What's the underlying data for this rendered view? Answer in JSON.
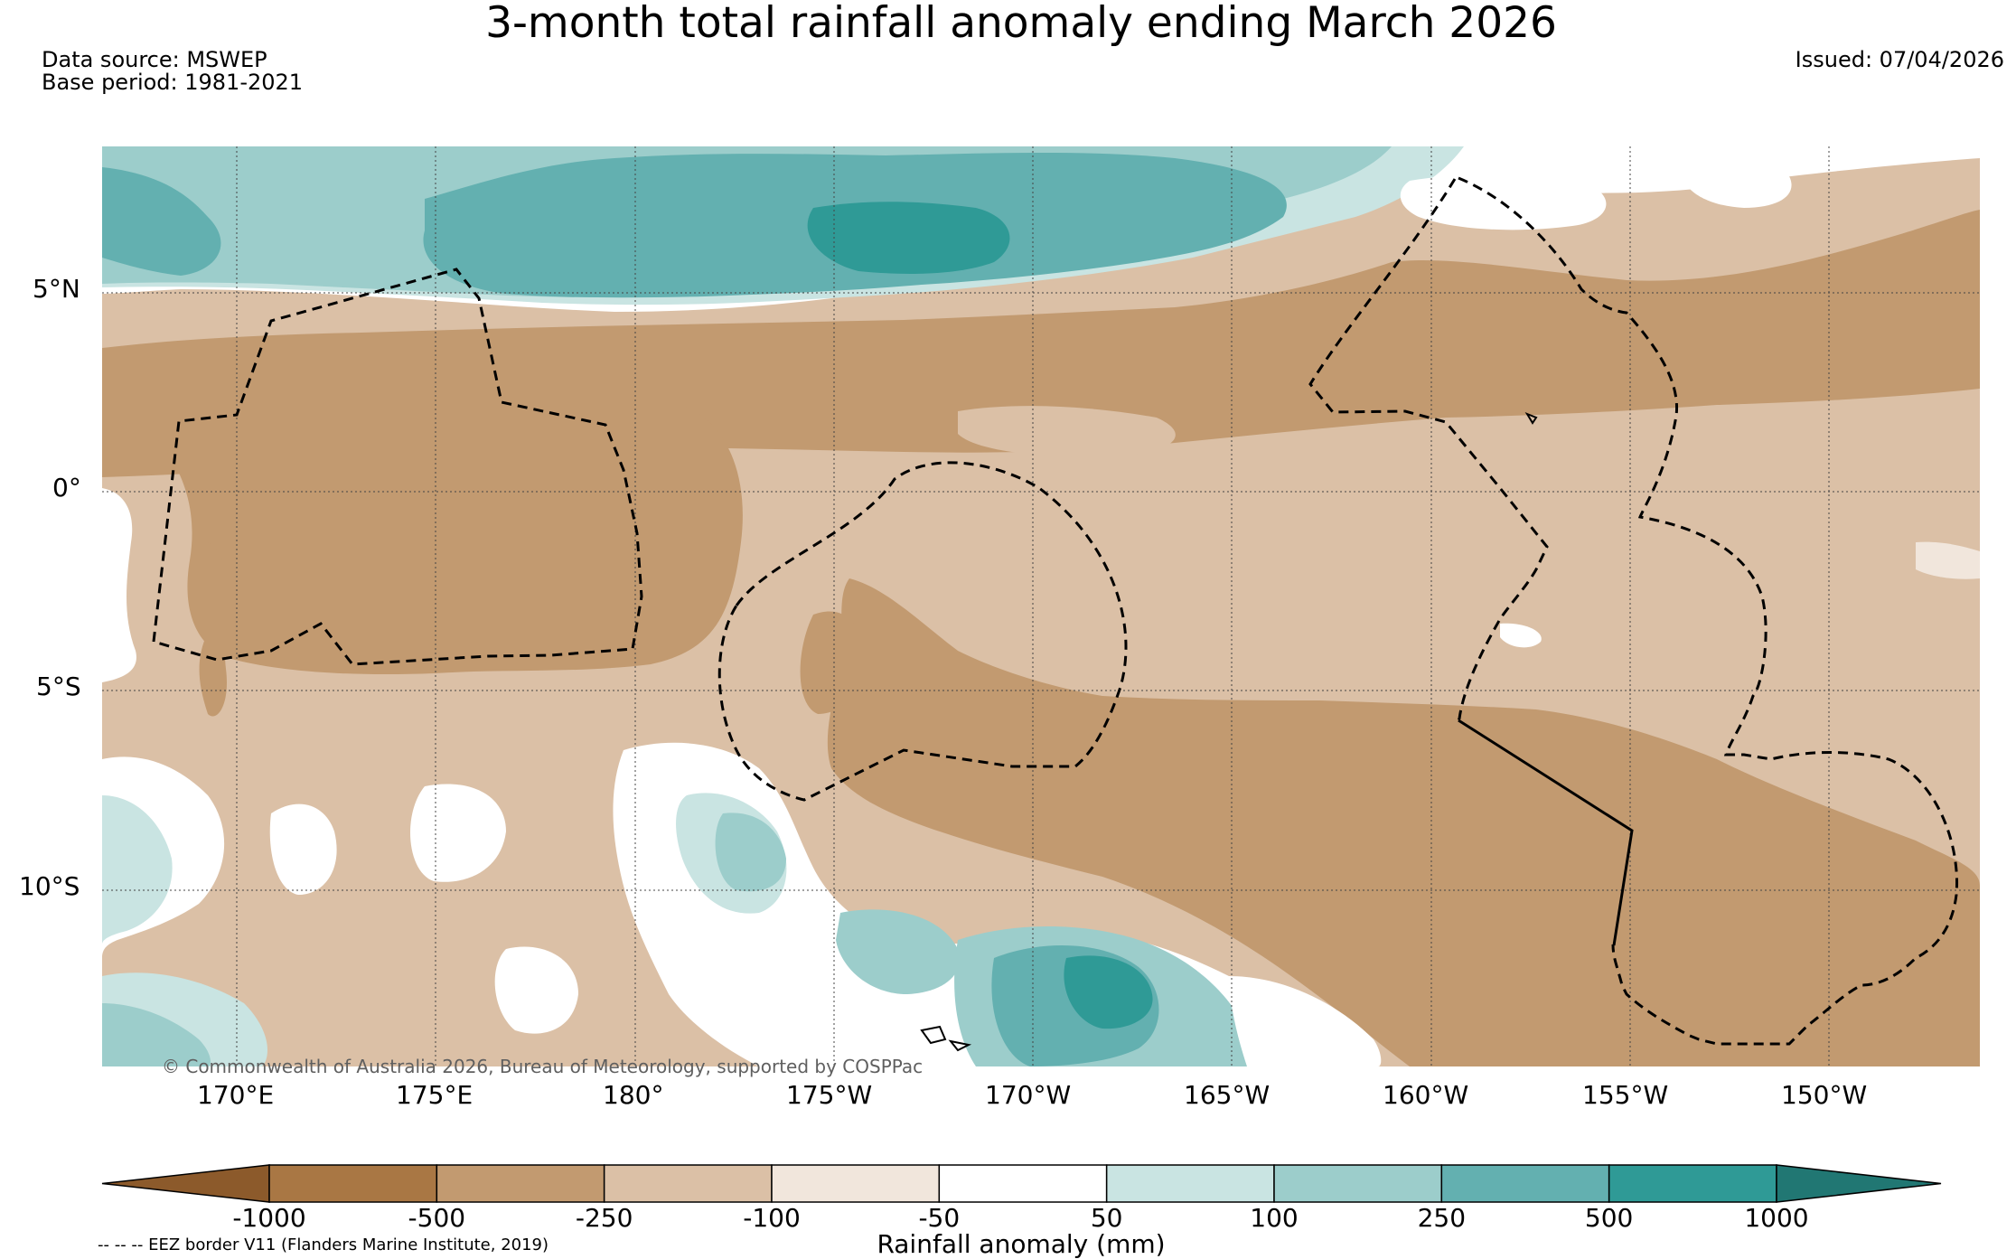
{
  "title": "3-month total rainfall anomaly ending March 2026",
  "data_source": "Data source: MSWEP",
  "base_period": "Base period: 1981-2021",
  "issued": "Issued: 07/04/2026",
  "copyright": "© Commonwealth of Australia 2026, Bureau of Meteorology, supported by COSPPac",
  "eez_note": "-- -- -- EEZ border V11 (Flanders Marine Institute, 2019)",
  "lat_labels": [
    "5°N",
    "0°",
    "5°S",
    "10°S"
  ],
  "lon_labels": [
    "170°E",
    "175°E",
    "180°",
    "175°W",
    "170°W",
    "165°W",
    "160°W",
    "155°W",
    "150°W"
  ],
  "colorbar": {
    "label": "Rainfall anomaly (mm)",
    "tick_labels": [
      "-1000",
      "-500",
      "-250",
      "-100",
      "-50",
      "50",
      "100",
      "250",
      "500",
      "1000"
    ],
    "colors": [
      "#8c5a2b",
      "#a97744",
      "#c29a70",
      "#dbc0a6",
      "#f1e6dc",
      "#ffffff",
      "#c9e4e2",
      "#9ccdcb",
      "#63b0b0",
      "#2f9a96",
      "#217773"
    ]
  }
}
